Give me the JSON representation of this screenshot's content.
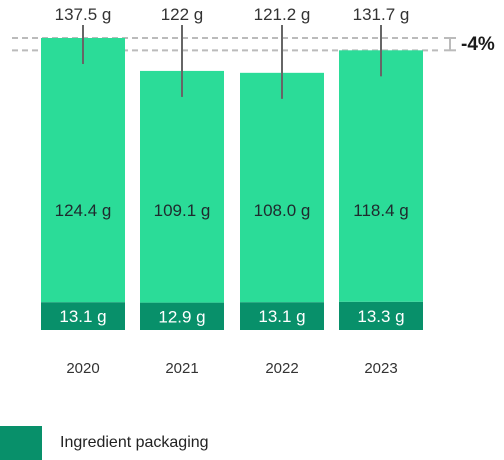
{
  "colors": {
    "food": "#2bdc98",
    "packaging": "#08906a",
    "reference_line": "#bbbbbb",
    "stem": "#666666"
  },
  "chart_data": {
    "type": "bar",
    "stacked": true,
    "categories": [
      "2020",
      "2021",
      "2022",
      "2023"
    ],
    "series": [
      {
        "name": "Ingredient packaging",
        "values": [
          13.1,
          12.9,
          13.1,
          13.3
        ],
        "labels": [
          "13.1 g",
          "12.9 g",
          "13.1 g",
          "13.3 g"
        ]
      },
      {
        "values": [
          124.4,
          109.1,
          108.0,
          118.4
        ],
        "labels": [
          "124.4 g",
          "109.1 g",
          "108.0 g",
          "118.4 g"
        ]
      }
    ],
    "totals": [
      137.5,
      122,
      121.2,
      131.7
    ],
    "total_labels": [
      "137.5 g",
      "122 g",
      "121.2 g",
      "131.7 g"
    ],
    "change_annotation": "-4%",
    "reference_lines": [
      137.5,
      131.7
    ],
    "ylim": [
      0,
      137.5
    ],
    "grid": false,
    "legend_position": "bottom-left"
  },
  "legend": {
    "items": [
      {
        "label": "Ingredient packaging"
      }
    ]
  }
}
